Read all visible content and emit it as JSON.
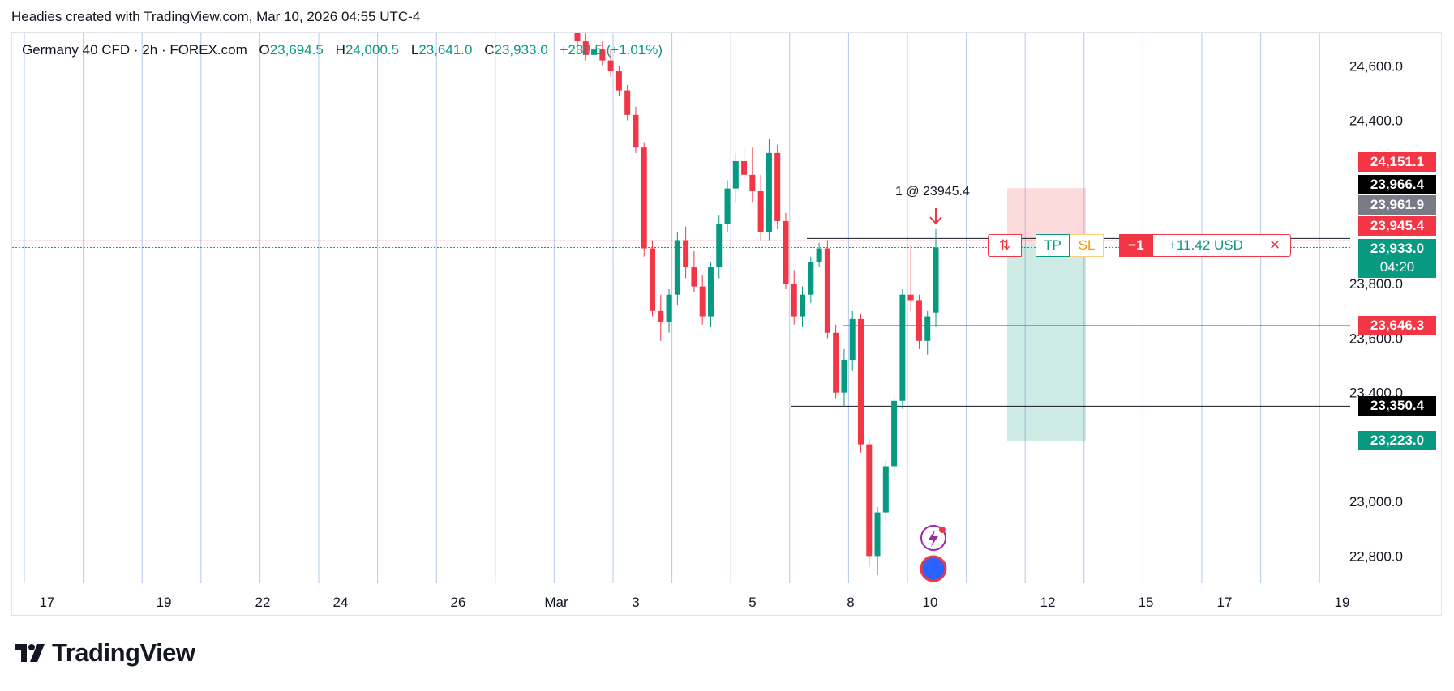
{
  "header": {
    "note": "Headies created with TradingView.com, Mar 10, 2026 04:55 UTC-4"
  },
  "legend": {
    "symbol": "Germany 40 CFD · 2h · FOREX.com",
    "o_label": "O",
    "o": "23,694.5",
    "h_label": "H",
    "h": "24,000.5",
    "l_label": "L",
    "l": "23,641.0",
    "c_label": "C",
    "c": "23,933.0",
    "change": "+238.5 (+1.01%)"
  },
  "colors": {
    "up": "#089981",
    "down": "#f23645",
    "grid": "#b2c8f0",
    "text": "#131722"
  },
  "chart_data": {
    "type": "candlestick",
    "title": "Germany 40 CFD · 2h · FOREX.com",
    "ylim": [
      22700,
      24720
    ],
    "y_ticks": [
      "22,800.0",
      "23,000.0",
      "23,400.0",
      "23,600.0",
      "23,800.0",
      "24,400.0",
      "24,600.0"
    ],
    "y_tick_values": [
      22800,
      23000,
      23400,
      23600,
      23800,
      24400,
      24600
    ],
    "x_ticks": [
      "17",
      "19",
      "22",
      "24",
      "26",
      "Mar",
      "3",
      "5",
      "8",
      "10",
      "12",
      "15",
      "17",
      "19"
    ],
    "x_tick_index": [
      0,
      4,
      7,
      10,
      13,
      17,
      19,
      22,
      25,
      28,
      31,
      35,
      38,
      42
    ],
    "x_tick_positions_note": "index = session count from 17 Feb",
    "candles": [
      [
        24720,
        24740,
        24650,
        24690
      ],
      [
        24690,
        24720,
        24620,
        24640
      ],
      [
        24640,
        24700,
        24600,
        24660
      ],
      [
        24660,
        24690,
        24600,
        24620
      ],
      [
        24620,
        24660,
        24560,
        24580
      ],
      [
        24580,
        24600,
        24490,
        24510
      ],
      [
        24510,
        24530,
        24400,
        24420
      ],
      [
        24420,
        24450,
        24280,
        24300
      ],
      [
        24300,
        24320,
        23900,
        23930
      ],
      [
        23930,
        23960,
        23680,
        23700
      ],
      [
        23700,
        23760,
        23590,
        23660
      ],
      [
        23660,
        23780,
        23620,
        23760
      ],
      [
        23760,
        23990,
        23720,
        23960
      ],
      [
        23960,
        24010,
        23820,
        23860
      ],
      [
        23860,
        23920,
        23770,
        23790
      ],
      [
        23790,
        23830,
        23650,
        23680
      ],
      [
        23680,
        23880,
        23640,
        23860
      ],
      [
        23860,
        24050,
        23820,
        24020
      ],
      [
        24020,
        24180,
        23990,
        24150
      ],
      [
        24150,
        24280,
        24100,
        24250
      ],
      [
        24250,
        24300,
        24180,
        24200
      ],
      [
        24200,
        24300,
        24100,
        24140
      ],
      [
        24140,
        24200,
        23960,
        23990
      ],
      [
        23990,
        24330,
        23960,
        24280
      ],
      [
        24280,
        24310,
        24000,
        24030
      ],
      [
        24030,
        24060,
        23780,
        23800
      ],
      [
        23800,
        23850,
        23650,
        23680
      ],
      [
        23680,
        23790,
        23640,
        23760
      ],
      [
        23760,
        23900,
        23730,
        23880
      ],
      [
        23880,
        23950,
        23860,
        23930
      ],
      [
        23930,
        23960,
        23600,
        23620
      ],
      [
        23620,
        23650,
        23380,
        23400
      ],
      [
        23400,
        23560,
        23350,
        23520
      ],
      [
        23520,
        23700,
        23480,
        23670
      ],
      [
        23670,
        23690,
        23180,
        23210
      ],
      [
        23210,
        23230,
        22760,
        22800
      ],
      [
        22800,
        22980,
        22730,
        22960
      ],
      [
        22960,
        23150,
        22930,
        23130
      ],
      [
        23130,
        23390,
        23100,
        23370
      ],
      [
        23370,
        23780,
        23340,
        23760
      ],
      [
        23760,
        23940,
        23700,
        23740
      ],
      [
        23740,
        23760,
        23560,
        23590
      ],
      [
        23590,
        23700,
        23540,
        23680
      ],
      [
        23694.5,
        24000.5,
        23641.0,
        23933.0
      ]
    ],
    "price_labels": [
      {
        "text": "24,151.1",
        "value": 24151.1,
        "bg": "#f23645"
      },
      {
        "text": "23,966.4",
        "value": 23966.4,
        "bg": "#000000"
      },
      {
        "text": "23,961.9",
        "value": 23961.9,
        "bg": "#787b86"
      },
      {
        "text": "23,945.4",
        "value": 23945.4,
        "bg": "#f23645"
      },
      {
        "text": "23,933.0",
        "value": 23933.0,
        "bg": "#089981",
        "sub": "04:20"
      },
      {
        "text": "23,646.3",
        "value": 23646.3,
        "bg": "#f23645"
      },
      {
        "text": "23,350.4",
        "value": 23350.4,
        "bg": "#000000"
      },
      {
        "text": "23,223.0",
        "value": 23223.0,
        "bg": "#089981"
      }
    ],
    "position": {
      "entry_label": "1 @ 23945.4",
      "entry": 23945.4,
      "stop": 24151.1,
      "target": 23223.0,
      "qty": "−1",
      "pnl": "+11.42 USD",
      "tp": "TP",
      "sl": "SL"
    },
    "hlines": [
      23966.4,
      23646.3,
      23350.4
    ]
  }
}
